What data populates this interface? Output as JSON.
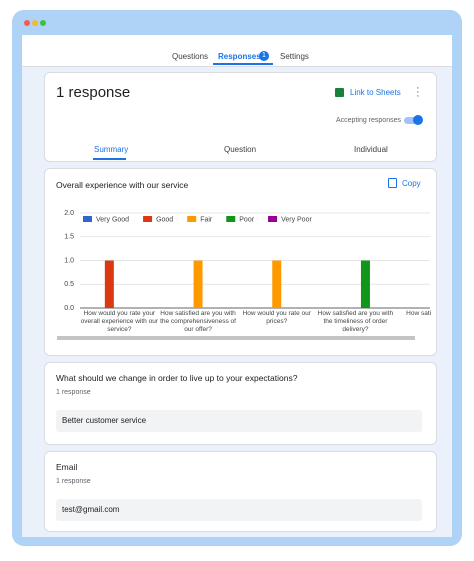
{
  "tabs": [
    "Questions",
    "Responses",
    "Settings"
  ],
  "response_badge": "1",
  "summary": {
    "title": "1 response",
    "link_to_sheets": "Link to Sheets",
    "accepting": "Accepting responses",
    "views": [
      "Summary",
      "Question",
      "Individual"
    ]
  },
  "copy_button": "Copy",
  "chart_data": {
    "type": "bar",
    "title": "Overall experience with our service",
    "categories": [
      "How would you rate your overall experience with our service?",
      "How satisfied are you with the comprehensiveness of our offer?",
      "How would you rate our prices?",
      "How satisfied are you with the timeliness of order delivery?",
      "How satisfi the cust"
    ],
    "series": [
      {
        "name": "Very Good",
        "color": "#3366cc",
        "values": [
          0,
          0,
          0,
          0,
          0
        ]
      },
      {
        "name": "Good",
        "color": "#dc3912",
        "values": [
          1,
          0,
          0,
          0,
          0
        ]
      },
      {
        "name": "Fair",
        "color": "#ff9900",
        "values": [
          0,
          1,
          1,
          0,
          0
        ]
      },
      {
        "name": "Poor",
        "color": "#109618",
        "values": [
          0,
          0,
          0,
          1,
          0
        ]
      },
      {
        "name": "Very Poor",
        "color": "#990099",
        "values": [
          0,
          0,
          0,
          0,
          0
        ]
      }
    ],
    "ylim": [
      0,
      2
    ],
    "yticks": [
      {
        "value": 0,
        "label": "0.0"
      },
      {
        "value": 0.5,
        "label": "0.5"
      },
      {
        "value": 1,
        "label": "1.0"
      },
      {
        "value": 1.5,
        "label": "1.5"
      },
      {
        "value": 2,
        "label": "2.0"
      }
    ],
    "grid": true,
    "legend": "top"
  },
  "questions": [
    {
      "title": "What should we change in order to live up to your expectations?",
      "count": "1 response",
      "answers": [
        "Better customer service"
      ]
    },
    {
      "title": "Email",
      "count": "1 response",
      "answers": [
        "test@gmail.com"
      ]
    }
  ]
}
